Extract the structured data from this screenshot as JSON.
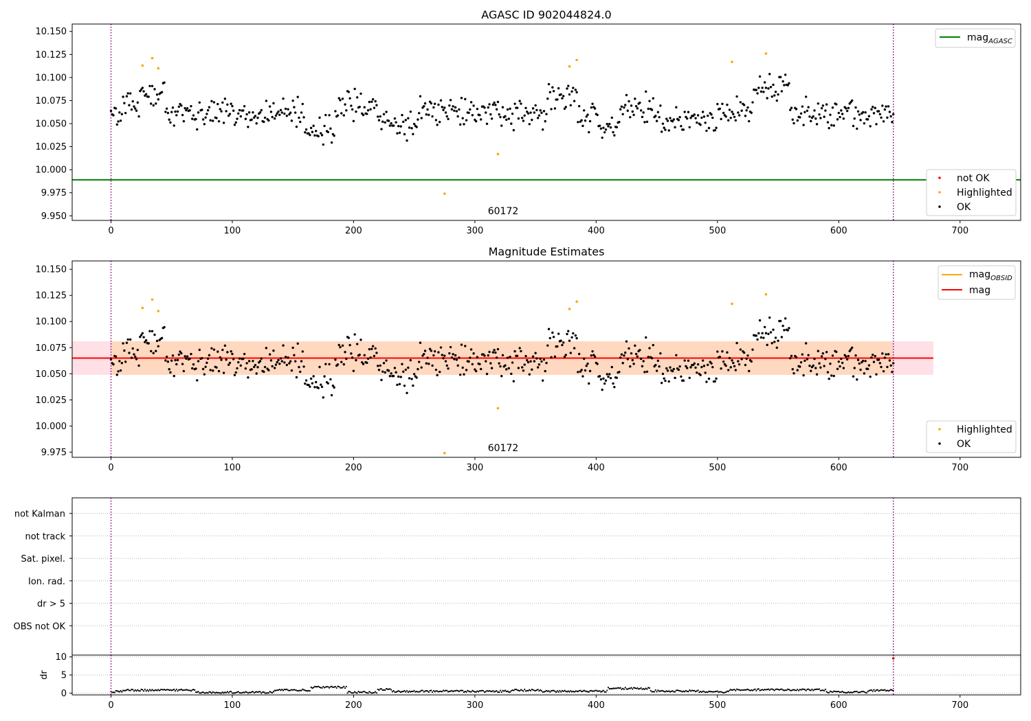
{
  "colors": {
    "ok": "#000000",
    "highlighted": "#ffa500",
    "not_ok": "#ff0000",
    "mag_agasc": "#008000",
    "mag_obsid": "#ffa500",
    "mag": "#ff0000",
    "band_outer": "#ffe0e6",
    "band_inner": "#ffd8c0",
    "obs_boundary": "#800080"
  },
  "chart_data": [
    {
      "type": "scatter",
      "title": "AGASC ID 902044824.0",
      "xlim": [
        -32,
        750
      ],
      "ylim": [
        9.945,
        10.158
      ],
      "x_ticks": [
        0,
        100,
        200,
        300,
        400,
        500,
        600,
        700
      ],
      "y_ticks": [
        9.95,
        9.975,
        10.0,
        10.025,
        10.05,
        10.075,
        10.1,
        10.125,
        10.15
      ],
      "y_tick_labels": [
        "9.950",
        "9.975",
        "10.000",
        "10.025",
        "10.050",
        "10.075",
        "10.100",
        "10.125",
        "10.150"
      ],
      "obs_boundaries": [
        0,
        645
      ],
      "annotation": {
        "text": "60172",
        "x": 322,
        "y": 9.951
      },
      "mag_agasc": 9.989,
      "legend_lines": [
        {
          "label": "mag",
          "subscript": "AGASC",
          "color": "#008000"
        }
      ],
      "legend_points": [
        {
          "label": "not OK",
          "color": "#ff0000"
        },
        {
          "label": "Highlighted",
          "color": "#ffa500"
        },
        {
          "label": "OK",
          "color": "#000000"
        }
      ],
      "highlighted_points": [
        [
          26,
          10.113
        ],
        [
          34,
          10.121
        ],
        [
          39,
          10.11
        ],
        [
          275,
          9.974
        ],
        [
          319,
          10.017
        ],
        [
          378,
          10.112
        ],
        [
          384,
          10.119
        ],
        [
          512,
          10.117
        ],
        [
          540,
          10.126
        ]
      ]
    },
    {
      "type": "scatter",
      "title": "Magnitude Estimates",
      "xlim": [
        -32,
        750
      ],
      "ylim": [
        9.97,
        10.158
      ],
      "x_ticks": [
        0,
        100,
        200,
        300,
        400,
        500,
        600,
        700
      ],
      "y_ticks": [
        9.975,
        10.0,
        10.025,
        10.05,
        10.075,
        10.1,
        10.125,
        10.15
      ],
      "y_tick_labels": [
        "9.975",
        "10.000",
        "10.025",
        "10.050",
        "10.075",
        "10.100",
        "10.125",
        "10.150"
      ],
      "obs_boundaries": [
        0,
        645
      ],
      "annotation": {
        "text": "60172",
        "x": 322,
        "y": 9.976
      },
      "mag": 10.065,
      "mag_band": [
        10.049,
        10.081
      ],
      "mag_band_xrange": [
        -32,
        678
      ],
      "legend_lines": [
        {
          "label": "mag",
          "subscript": "OBSID",
          "color": "#ffa500"
        },
        {
          "label": "mag",
          "subscript": "",
          "color": "#ff0000"
        }
      ],
      "legend_points": [
        {
          "label": "Highlighted",
          "color": "#ffa500"
        },
        {
          "label": "OK",
          "color": "#000000"
        }
      ],
      "highlighted_points": [
        [
          26,
          10.113
        ],
        [
          34,
          10.121
        ],
        [
          39,
          10.11
        ],
        [
          275,
          9.974
        ],
        [
          319,
          10.017
        ],
        [
          378,
          10.112
        ],
        [
          384,
          10.119
        ],
        [
          512,
          10.117
        ],
        [
          540,
          10.126
        ]
      ]
    },
    {
      "type": "scatter",
      "title": "",
      "xlim": [
        -32,
        750
      ],
      "flag_labels": [
        "not Kalman",
        "not track",
        "Sat. pixel.",
        "Ion. rad.",
        "dr > 5",
        "OBS not OK"
      ],
      "obs_boundaries": [
        0,
        645
      ]
    },
    {
      "type": "scatter",
      "ylabel": "dr",
      "xlim": [
        -32,
        750
      ],
      "ylim": [
        -0.5,
        10.5
      ],
      "x_ticks": [
        0,
        100,
        200,
        300,
        400,
        500,
        600,
        700
      ],
      "y_ticks": [
        0,
        5,
        10
      ],
      "y_tick_labels": [
        "0",
        "5",
        "10"
      ],
      "obs_boundaries": [
        0,
        645
      ],
      "not_ok_points": [
        [
          645,
          9.6
        ]
      ]
    }
  ]
}
